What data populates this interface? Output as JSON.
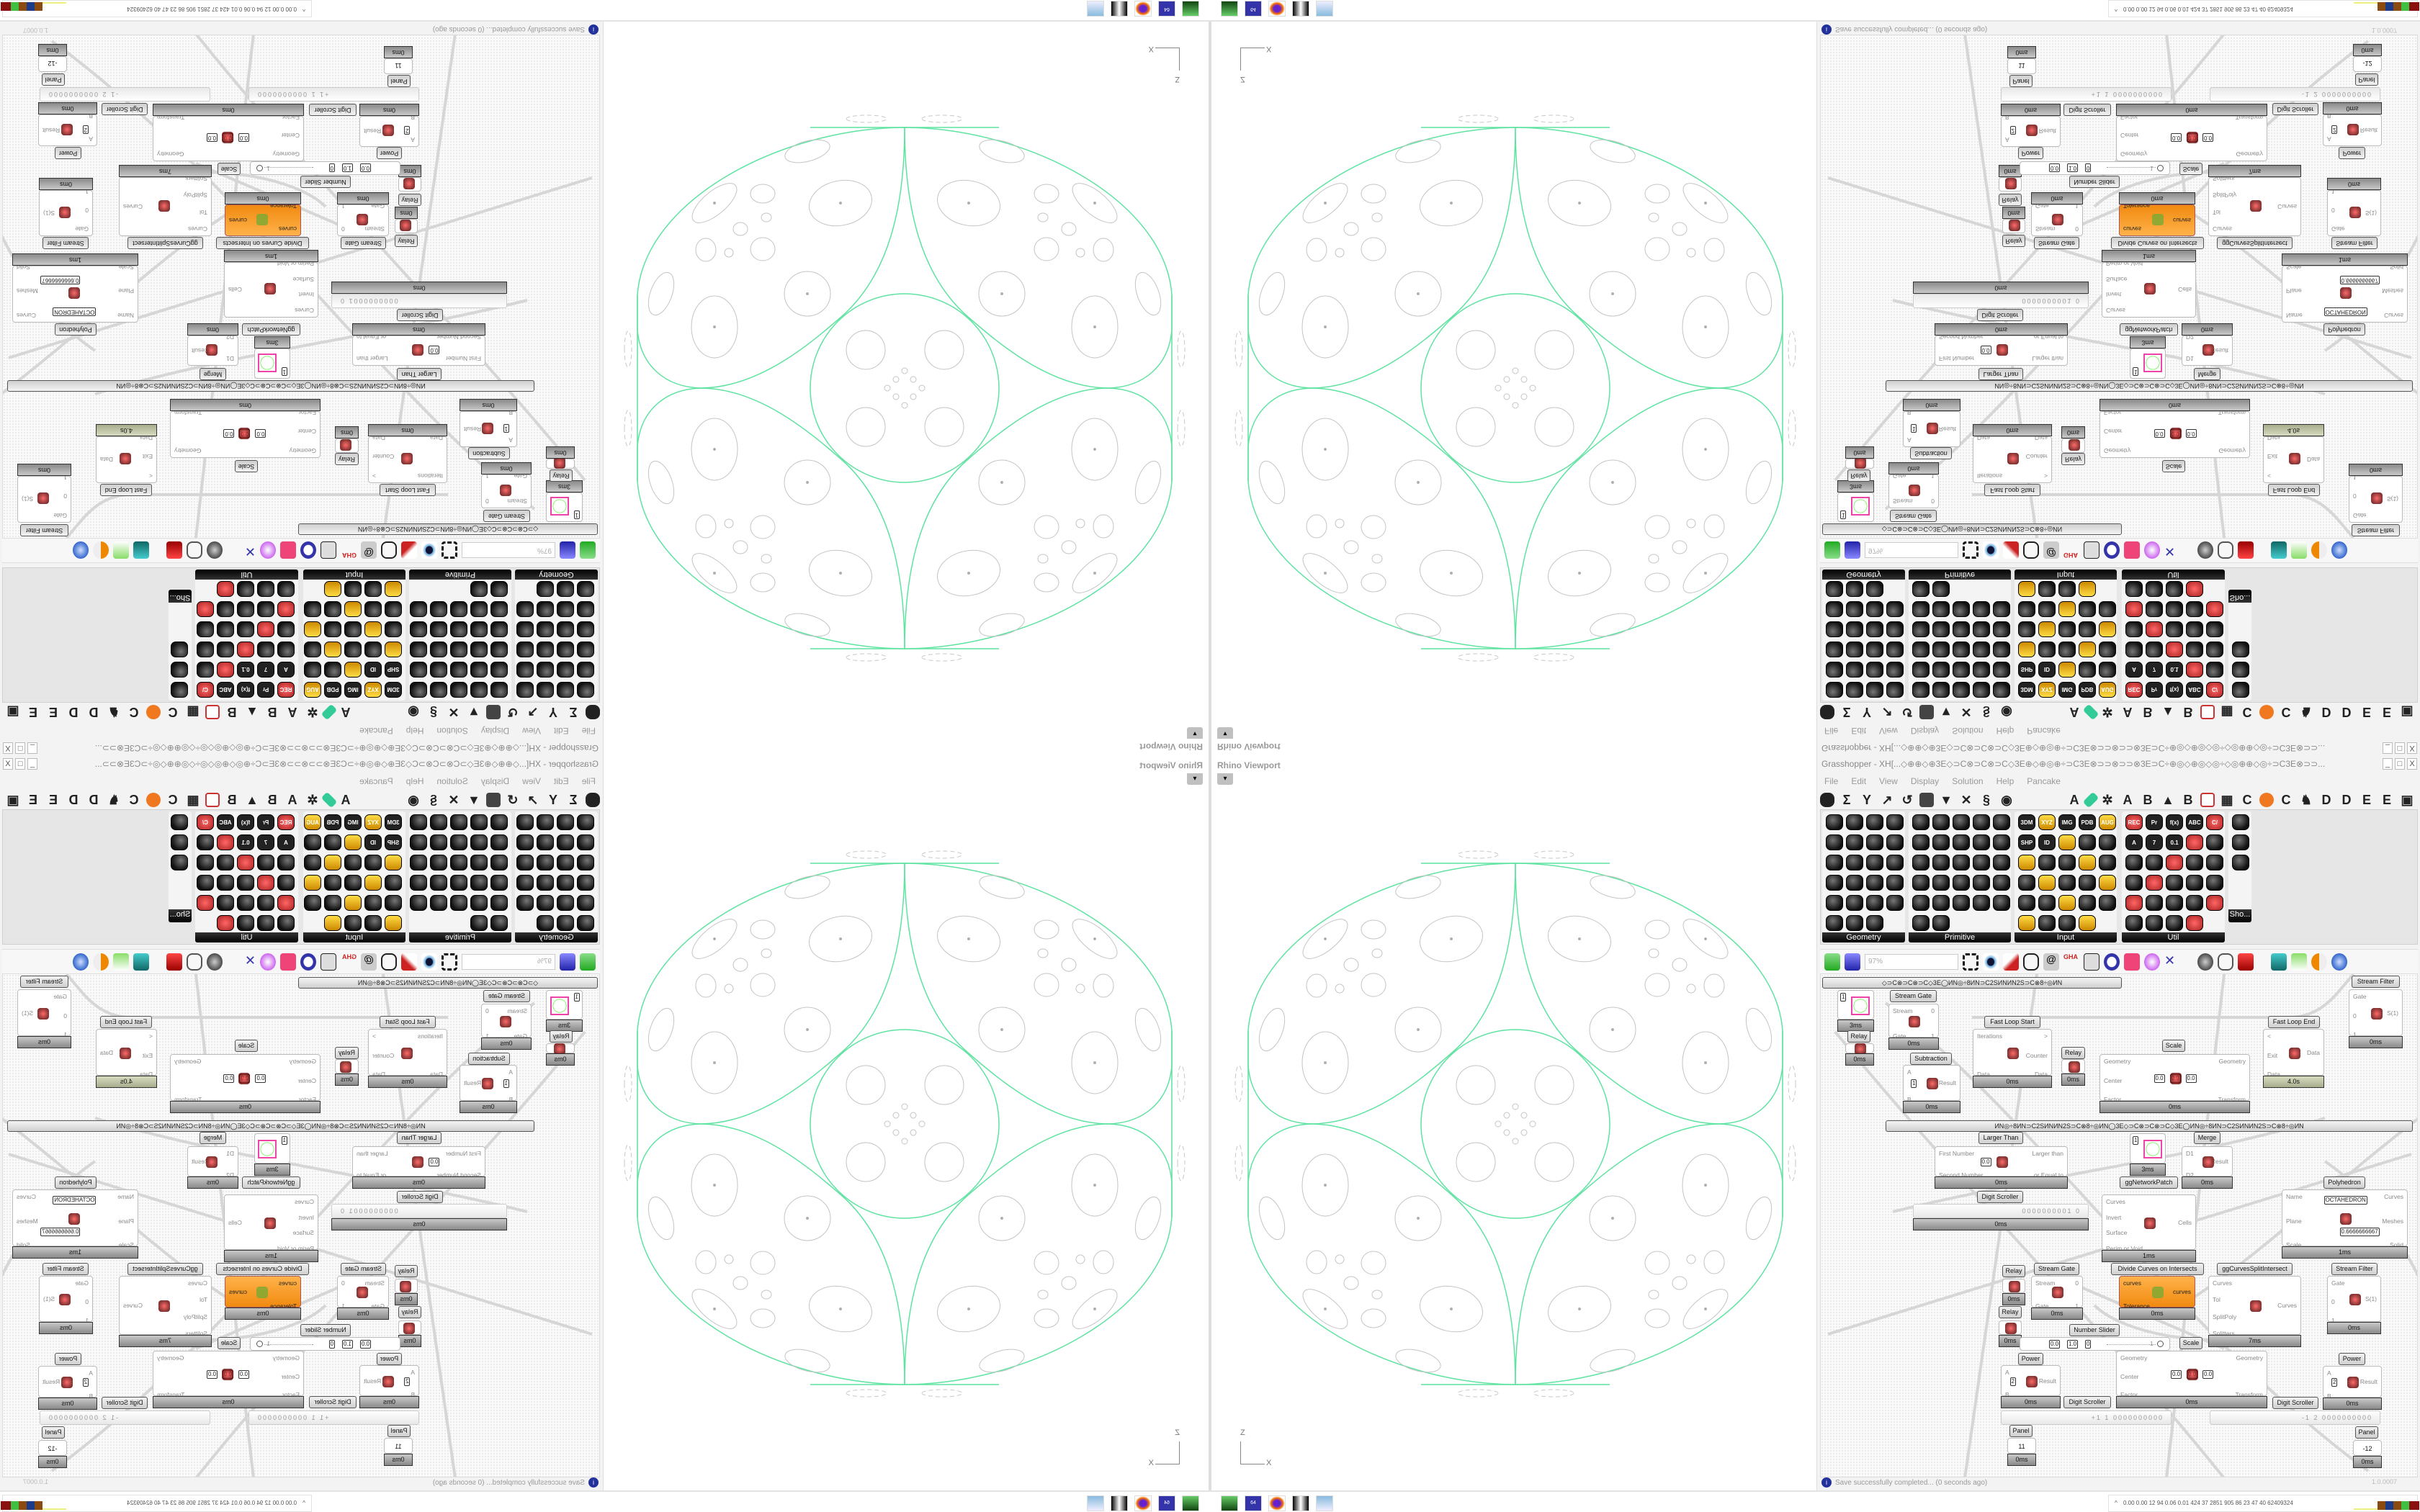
{
  "rhino": {
    "viewport_label": "Rhino Viewport",
    "viewport_menu_icon": "dropdown-arrow",
    "axis_z": "Z",
    "axis_x": "X",
    "curve_color": "#5ee3a1",
    "point_color": "#c0c0c0"
  },
  "grasshopper": {
    "title": "Grasshopper - XH[...◇⊕⊕◇⊕3E◇⊃C⊗⊃C⊗⊃C◇3E⊕◇⊕◎⊕÷⊃C3E⊗⊃⊃⊗⊃⊃⊗3E⊃C÷⊕◎◇⊕◎◇◎÷◇◎⊕⊕◇◎÷⊃C3E⊗⊃⊃...",
    "window_buttons": {
      "minimize": "_",
      "maximize": "□",
      "close": "X"
    },
    "menu": [
      "File",
      "Edit",
      "View",
      "Display",
      "Solution",
      "Help",
      "Pancake"
    ],
    "tab_letters": [
      "A",
      "A",
      "B",
      "B",
      "C",
      "C",
      "D",
      "D",
      "E",
      "E"
    ],
    "panels": [
      {
        "label": "Geometry"
      },
      {
        "label": "Primitive"
      },
      {
        "label": "Input"
      },
      {
        "label": "Util"
      },
      {
        "label": "Sho..."
      }
    ],
    "input_icon_text": [
      "3DM",
      "XYZ",
      "IMG",
      "PDB",
      "AUG 20",
      "SHP",
      "ID"
    ],
    "util_icon_text": [
      "REC",
      "Pr",
      "f(x)",
      "ABC",
      "C/",
      "A",
      "7",
      "0.1"
    ],
    "zoom": "97%",
    "group_titles": [
      "◇⊃C⊗⊃C⊗⊃C◇3E◯ИN◎÷8ИN⊃C2SИNИN2S⊃C⊗8÷◎ИN",
      "ИN◎÷8ИN⊃C2SИNИN2S⊃C⊗8÷◎ИN◯3E◇⊃C⊗⊃C⊗⊃C◇3E◯ИN◎÷8ИN⊃C2SИNИN2S⊃C⊗8÷◎ИN"
    ],
    "nodes": [
      {
        "label": "Stream Gate",
        "ins": [
          "Stream",
          "Gate"
        ],
        "outs": [
          "0",
          "1"
        ],
        "time": "0ms"
      },
      {
        "label": "",
        "preview": "1",
        "time": "3ms"
      },
      {
        "label": "Relay",
        "time": "0ms"
      },
      {
        "label": "Subtraction",
        "ins": [
          "A",
          "B"
        ],
        "outs": [
          "Result"
        ],
        "values": [
          "1"
        ],
        "time": "0ms"
      },
      {
        "label": "Fast Loop Start",
        "ins": [
          "Iterations",
          "Data"
        ],
        "outs": [
          ">",
          "Counter",
          "Data"
        ],
        "time": "0ms"
      },
      {
        "label": "Relay",
        "time": "0ms"
      },
      {
        "label": "Scale",
        "ins": [
          "Geometry",
          "Center",
          "Factor"
        ],
        "outs": [
          "Geometry",
          "Transform"
        ],
        "values": [
          "0.0",
          "0.0",
          "0.0"
        ],
        "time": "0ms"
      },
      {
        "label": "Fast Loop End",
        "ins": [
          "<",
          "Exit",
          "Data"
        ],
        "outs": [
          "Data"
        ],
        "time": "4.0s"
      },
      {
        "label": "Stream Filter",
        "ins": [
          "Gate",
          "0",
          "1"
        ],
        "outs": [
          "S(1)"
        ],
        "time": "0ms"
      },
      {
        "label": "Larger Than",
        "ins": [
          "First Number",
          "Second Number"
        ],
        "outs": [
          "Larger than",
          "... or Equal to"
        ],
        "values": [
          "0.0"
        ],
        "time": "0ms"
      },
      {
        "label": "Digit Scroller",
        "scroller": "0000000001 0",
        "time": "0ms"
      },
      {
        "label": "ggNetworkPatch",
        "preview": "1",
        "time": "3ms"
      },
      {
        "label": "Merge",
        "ins": [
          "D1",
          "D2"
        ],
        "outs": [
          "Result"
        ],
        "time": "0ms"
      },
      {
        "label": "",
        "ins": [
          "Curves",
          "Invert",
          "Surface",
          "Perim or Void"
        ],
        "outs": [
          "Cells"
        ],
        "time": "1ms"
      },
      {
        "label": "Polyhedron",
        "ins": [
          "Name",
          "Plane",
          "Scale"
        ],
        "outs": [
          "Curves",
          "Meshes",
          "Solid"
        ],
        "values": [
          "OCTAHEDRON",
          "0.6666666667"
        ],
        "time": "1ms"
      },
      {
        "label": "Relay",
        "time": "0ms"
      },
      {
        "label": "Relay",
        "time": "0ms"
      },
      {
        "label": "Stream Gate",
        "ins": [
          "Stream",
          "Gate"
        ],
        "outs": [
          "0",
          "1"
        ],
        "time": "0ms"
      },
      {
        "label": "Divide Curves on Intersects",
        "ins": [
          "curves",
          "Tolerance"
        ],
        "outs": [
          "curves"
        ],
        "time": "0ms"
      },
      {
        "label": "ggCurvesSplitIntersect",
        "ins": [
          "Curves",
          "Tol",
          "SplitPoly",
          "Splitters"
        ],
        "outs": [
          "Curves"
        ],
        "time": "7ms"
      },
      {
        "label": "Stream Filter",
        "ins": [
          "Gate",
          "0",
          "1"
        ],
        "outs": [
          "S(1)"
        ],
        "time": "0ms"
      },
      {
        "label": "Number Slider",
        "slider": {
          "min": "0.0",
          "max": "1.0",
          "decimals": "0",
          "value": "1"
        }
      },
      {
        "label": "Power",
        "ins": [
          "A",
          "B"
        ],
        "outs": [
          "Result"
        ],
        "values": [
          "2"
        ],
        "time": "0ms"
      },
      {
        "label": "Scale",
        "ins": [
          "Geometry",
          "Center",
          "Factor"
        ],
        "outs": [
          "Geometry",
          "Transform"
        ],
        "values": [
          "0.0",
          "0.0",
          "0.0"
        ],
        "time": "0ms"
      },
      {
        "label": "Power",
        "ins": [
          "A",
          "B"
        ],
        "outs": [
          "Result"
        ],
        "values": [
          "2"
        ],
        "time": "0ms"
      },
      {
        "label": "Digit Scroller",
        "scroller": "+1 1 0000000000"
      },
      {
        "label": "Digit Scroller",
        "scroller": "-1 2 0000000000"
      },
      {
        "label": "Panel",
        "panel": "11",
        "time": "0ms"
      },
      {
        "label": "Panel",
        "panel": "-12",
        "time": "0ms"
      }
    ],
    "status": "Save successfully completed... (0 seconds ago)",
    "version": "1.0.0007"
  },
  "taskbar": {
    "icons": [
      "terminal",
      "floppy-64",
      "firefox",
      "wolf",
      "calculator"
    ],
    "floppy_label": "64",
    "tray_caret": "^",
    "tray_stats": "0.00 0.00  12  94  0.06 0.01  424  37  2851 905  86  23  47  40  62409324",
    "tray_bar_colors": [
      "#f0f080",
      "#f0f080",
      "#f0f080",
      "#8a4a10",
      "#1c3c8a",
      "#8a4a10",
      "#40c040",
      "#8a1010"
    ]
  }
}
